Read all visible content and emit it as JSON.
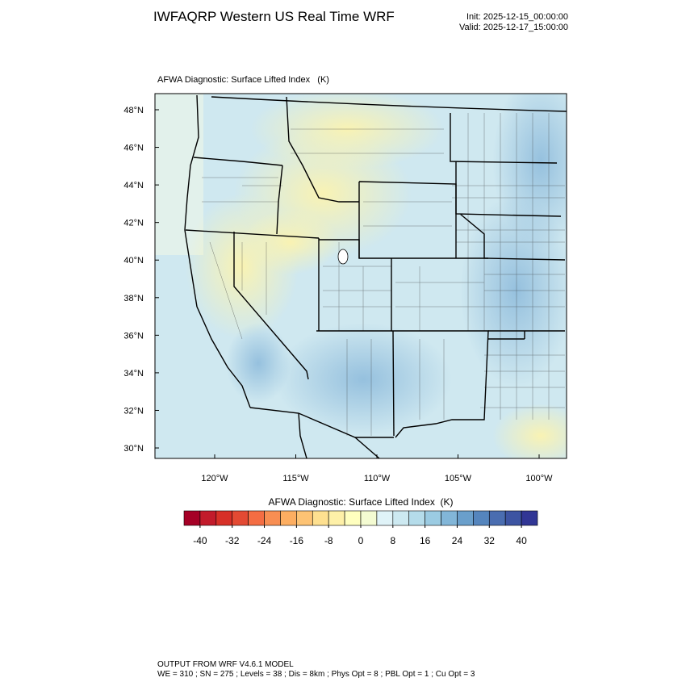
{
  "header": {
    "title": "IWFAQRP Western US Real Time WRF",
    "init": "Init: 2025-12-15_00:00:00",
    "valid": "Valid: 2025-12-17_15:00:00"
  },
  "map": {
    "title": "AFWA Diagnostic: Surface Lifted Index   (K)",
    "lat_ticks": [
      {
        "value": 48,
        "label": "48°N"
      },
      {
        "value": 46,
        "label": "46°N"
      },
      {
        "value": 44,
        "label": "44°N"
      },
      {
        "value": 42,
        "label": "42°N"
      },
      {
        "value": 40,
        "label": "40°N"
      },
      {
        "value": 38,
        "label": "38°N"
      },
      {
        "value": 36,
        "label": "36°N"
      },
      {
        "value": 34,
        "label": "34°N"
      },
      {
        "value": 32,
        "label": "32°N"
      },
      {
        "value": 30,
        "label": "30°N"
      }
    ],
    "lon_ticks": [
      {
        "value": -120,
        "label": "120°W"
      },
      {
        "value": -115,
        "label": "115°W"
      },
      {
        "value": -110,
        "label": "110°W"
      },
      {
        "value": -105,
        "label": "105°W"
      },
      {
        "value": -100,
        "label": "100°W"
      }
    ]
  },
  "colorbar": {
    "title": "AFWA Diagnostic: Surface Lifted Index  (K)",
    "lim": [
      -44,
      44
    ],
    "ticks": [
      -40,
      -32,
      -24,
      -16,
      -8,
      0,
      8,
      16,
      24,
      32,
      40
    ],
    "colors": [
      "#a50026",
      "#c21b2b",
      "#d73027",
      "#e34a33",
      "#f46d43",
      "#f88e52",
      "#fdae61",
      "#fdc374",
      "#fee090",
      "#fef0a8",
      "#ffffbf",
      "#f4fbd2",
      "#e0f3f8",
      "#cde9f1",
      "#b5dcea",
      "#9bcbe2",
      "#82b6d8",
      "#6a9fcb",
      "#5585bd",
      "#4a6db0",
      "#3d54a2",
      "#313695"
    ]
  },
  "footer": {
    "line1": "OUTPUT FROM WRF V4.6.1 MODEL",
    "line2": "WE = 310 ; SN = 275 ; Levels = 38 ; Dis = 8km ; Phys Opt = 8 ; PBL Opt = 1 ; Cu Opt = 3"
  }
}
